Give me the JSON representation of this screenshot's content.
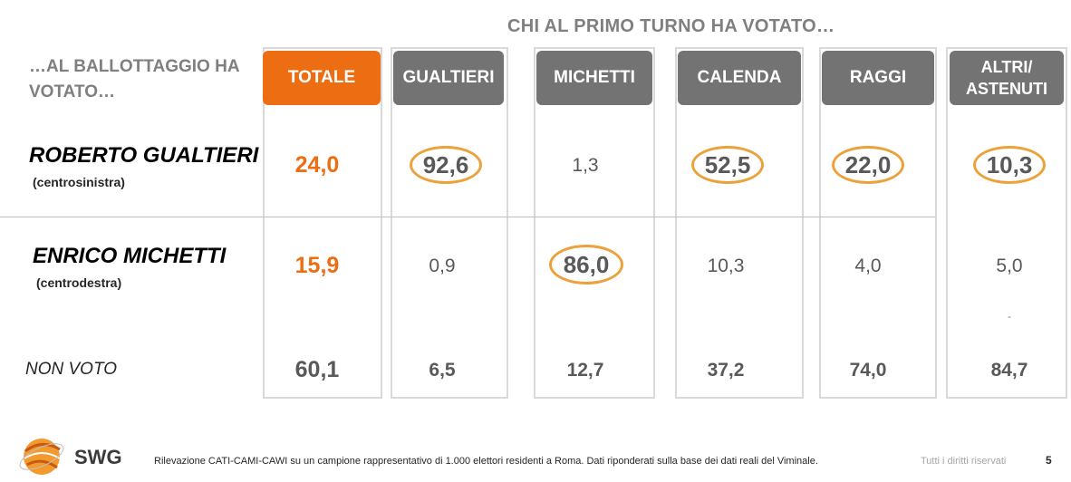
{
  "header": {
    "super_title": "CHI AL PRIMO TURNO HA VOTATO…",
    "row_header": "…AL BALLOTTAGGIO HA VOTATO…"
  },
  "columns": [
    "TOTALE",
    "GUALTIERI",
    "MICHETTI",
    "CALENDA",
    "RAGGI",
    "ALTRI/ ASTENUTI"
  ],
  "rows": [
    {
      "name": "ROBERTO GUALTIERI",
      "affiliation": "(centrosinistra)",
      "values": [
        "24,0",
        "92,6",
        "1,3",
        "52,5",
        "22,0",
        "10,3"
      ]
    },
    {
      "name": "ENRICO MICHETTI",
      "affiliation": "(centrodestra)",
      "values": [
        "15,9",
        "0,9",
        "86,0",
        "10,3",
        "4,0",
        "5,0"
      ]
    },
    {
      "name": "NON VOTO",
      "affiliation": "",
      "values": [
        "60,1",
        "6,5",
        "12,7",
        "37,2",
        "74,0",
        "84,7"
      ]
    }
  ],
  "highlighted_cells": [
    "row0-col1",
    "row0-col3",
    "row0-col4",
    "row0-col5",
    "row1-col2"
  ],
  "colors": {
    "accent_orange": "#ed6d12",
    "header_gray": "#737373",
    "highlight_ring": "#eba23c"
  },
  "stray_mark": "-",
  "footer": {
    "brand": "SWG",
    "note": "Rilevazione CATI-CAMI-CAWI su un campione rappresentativo di 1.000 elettori residenti a Roma. Dati riponderati sulla base dei dati reali del Viminale.",
    "rights": "Tutti i diritti riservati",
    "page_number": "5"
  }
}
